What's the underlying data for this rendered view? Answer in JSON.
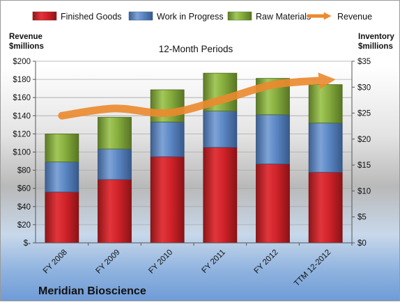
{
  "chart_data": {
    "type": "bar",
    "stacked": true,
    "title": "12-Month Periods",
    "company": "Meridian Bioscience",
    "categories": [
      "FY 2008",
      "FY 2009",
      "FY 2010",
      "FY 2011",
      "FY 2012",
      "TTM 12-2012"
    ],
    "left_axis": {
      "title": [
        "Revenue",
        "$millions"
      ],
      "ticks": [
        "$-",
        "$20",
        "$40",
        "$60",
        "$80",
        "$100",
        "$120",
        "$140",
        "$160",
        "$180",
        "$200"
      ],
      "range": [
        0,
        200
      ]
    },
    "right_axis": {
      "title": [
        "Inventory",
        "$millions"
      ],
      "ticks": [
        "$0",
        "$5",
        "$10",
        "$15",
        "$20",
        "$25",
        "$30",
        "$35"
      ],
      "range": [
        0,
        35
      ]
    },
    "series": [
      {
        "name": "Finished Goods",
        "axis": "right",
        "kind": "bar",
        "color": "#d2232a",
        "values": [
          9.8,
          12.2,
          16.6,
          18.4,
          15.2,
          13.6
        ]
      },
      {
        "name": "Work in Progress",
        "axis": "right",
        "kind": "bar",
        "color": "#5b87c4",
        "values": [
          5.8,
          5.9,
          6.7,
          7.0,
          9.5,
          9.5
        ]
      },
      {
        "name": "Raw Materials",
        "axis": "right",
        "kind": "bar",
        "color": "#86ad3e",
        "values": [
          5.4,
          6.1,
          6.2,
          7.3,
          7.0,
          7.4
        ]
      },
      {
        "name": "Revenue",
        "axis": "left",
        "kind": "line",
        "color": "#ec8a2e",
        "values": [
          140,
          148,
          143,
          157,
          174,
          179
        ]
      }
    ],
    "grid": true,
    "legend_position": "top"
  }
}
